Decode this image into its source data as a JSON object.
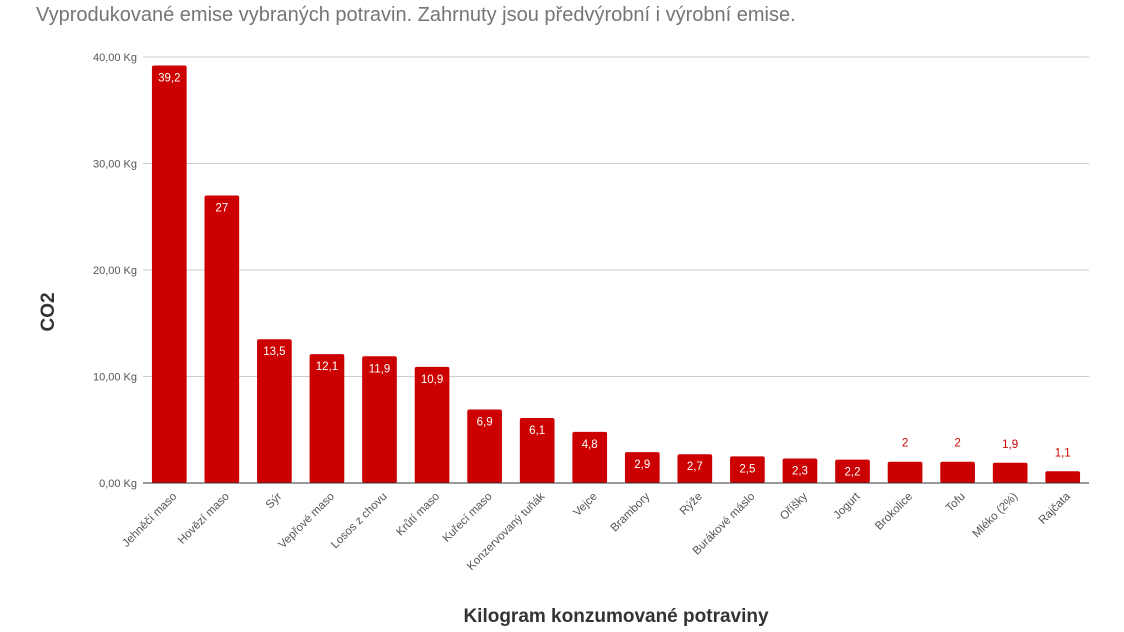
{
  "chart_data": {
    "type": "bar",
    "title": "Vyprodukované emise vybraných potravin. Zahrnuty jsou předvýrobní i výrobní emise.",
    "xlabel": "Kilogram konzumované potraviny",
    "ylabel": "CO2",
    "ylim": [
      0,
      40
    ],
    "yticks": [
      0,
      10,
      20,
      30,
      40
    ],
    "ytick_labels": [
      "0,00 Kg",
      "10,00 Kg",
      "20,00 Kg",
      "30,00 Kg",
      "40,00 Kg"
    ],
    "grid": true,
    "bar_color": "#cc0000",
    "categories": [
      "Jehněčí maso",
      "Hovězí maso",
      "Sýr",
      "Vepřové maso",
      "Losos z chovu",
      "Krůtí maso",
      "Kuřecí maso",
      "Konzervovaný tuňák",
      "Vejce",
      "Brambory",
      "Rýže",
      "Burákové máslo",
      "Oříšky",
      "Jogurt",
      "Brokolice",
      "Tofu",
      "Mléko (2%)",
      "Rajčata"
    ],
    "values": [
      39.2,
      27,
      13.5,
      12.1,
      11.9,
      10.9,
      6.9,
      6.1,
      4.8,
      2.9,
      2.7,
      2.5,
      2.3,
      2.2,
      2,
      2,
      1.9,
      1.1
    ],
    "value_labels": [
      "39,2",
      "27",
      "13,5",
      "12,1",
      "11,9",
      "10,9",
      "6,9",
      "6,1",
      "4,8",
      "2,9",
      "2,7",
      "2,5",
      "2,3",
      "2,2",
      "2",
      "2",
      "1,9",
      "1,1"
    ]
  }
}
